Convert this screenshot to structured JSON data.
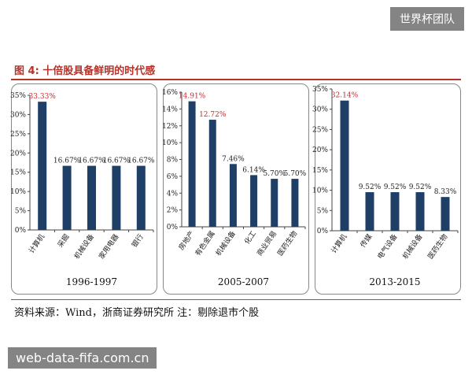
{
  "watermark_top": "世界杯团队",
  "watermark_bottom": "web-data-fifa.com.cn",
  "figure_title": "图 4: 十倍股具备鲜明的时代感",
  "source_note": "资料来源：Wind，浙商证券研究所    注：剔除退市个股",
  "colors": {
    "bar": "#1f3f66",
    "highlight_label": "#c8282c",
    "label": "#222222",
    "axis": "#444444"
  },
  "chart_data": [
    {
      "type": "bar",
      "period": "1996-1997",
      "categories": [
        "计算机",
        "采掘",
        "机械设备",
        "家用电器",
        "银行"
      ],
      "values": [
        33.33,
        16.67,
        16.67,
        16.67,
        16.67
      ],
      "value_labels": [
        "33.33%",
        "16.67%",
        "16.67%",
        "16.67%",
        "16.67%"
      ],
      "ylim": [
        0,
        35
      ],
      "yticks": [
        0,
        5,
        10,
        15,
        20,
        25,
        30,
        35
      ],
      "ytick_labels": [
        "0%",
        "5%",
        "10%",
        "15%",
        "20%",
        "25%",
        "30%",
        "35%"
      ],
      "highlight_index": 0
    },
    {
      "type": "bar",
      "period": "2005-2007",
      "categories": [
        "房地产",
        "有色金属",
        "机械设备",
        "化工",
        "商业贸易",
        "医药生物"
      ],
      "values": [
        14.91,
        12.72,
        7.46,
        6.14,
        5.7,
        5.7
      ],
      "value_labels": [
        "14.91%",
        "12.72%",
        "7.46%",
        "6.14%",
        "5.70%",
        "5.70%"
      ],
      "ylim": [
        0,
        16
      ],
      "yticks": [
        0,
        2,
        4,
        6,
        8,
        10,
        12,
        14,
        16
      ],
      "ytick_labels": [
        "0%",
        "2%",
        "4%",
        "6%",
        "8%",
        "10%",
        "12%",
        "14%",
        "16%"
      ],
      "highlight_index": [
        0,
        1
      ]
    },
    {
      "type": "bar",
      "period": "2013-2015",
      "categories": [
        "计算机",
        "传媒",
        "电气设备",
        "机械设备",
        "医药生物"
      ],
      "values": [
        32.14,
        9.52,
        9.52,
        9.52,
        8.33
      ],
      "value_labels": [
        "32.14%",
        "9.52%",
        "9.52%",
        "9.52%",
        "8.33%"
      ],
      "ylim": [
        0,
        35
      ],
      "yticks": [
        0,
        5,
        10,
        15,
        20,
        25,
        30,
        35
      ],
      "ytick_labels": [
        "0%",
        "5%",
        "10%",
        "15%",
        "20%",
        "25%",
        "30%",
        "35%"
      ],
      "highlight_index": 0
    }
  ]
}
